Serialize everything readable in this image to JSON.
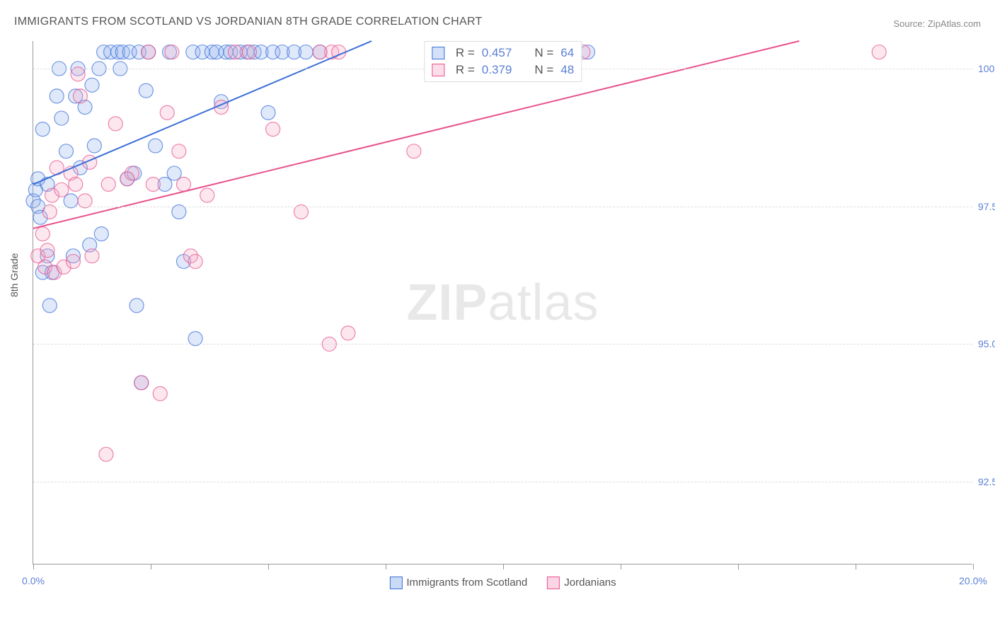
{
  "title": "IMMIGRANTS FROM SCOTLAND VS JORDANIAN 8TH GRADE CORRELATION CHART",
  "source": "Source: ZipAtlas.com",
  "ylabel": "8th Grade",
  "watermark_bold": "ZIP",
  "watermark_rest": "atlas",
  "chart": {
    "type": "scatter",
    "xlim": [
      0.0,
      20.0
    ],
    "ylim": [
      91.0,
      100.5
    ],
    "xticks": [
      0.0,
      2.5,
      5.0,
      7.5,
      10.0,
      12.5,
      15.0,
      17.5,
      20.0
    ],
    "xtick_labels": {
      "0": "0.0%",
      "20": "20.0%"
    },
    "yticks": [
      92.5,
      95.0,
      97.5,
      100.0
    ],
    "ytick_labels": [
      "92.5%",
      "95.0%",
      "97.5%",
      "100.0%"
    ],
    "grid_color": "#dddddd",
    "axis_color": "#999999",
    "background_color": "#ffffff",
    "label_color": "#5b7fd6",
    "text_color": "#555555",
    "marker_radius": 10,
    "marker_fill_opacity": 0.28,
    "marker_stroke_opacity": 0.7,
    "line_width": 2,
    "series": [
      {
        "name": "Immigrants from Scotland",
        "color_stroke": "#3b6fd8",
        "color_fill": "#8fb0ec",
        "R": "0.457",
        "N": "64",
        "trend": {
          "x1": 0.0,
          "y1": 97.9,
          "x2": 7.2,
          "y2": 100.5
        },
        "points": [
          [
            0.0,
            97.6
          ],
          [
            0.05,
            97.8
          ],
          [
            0.1,
            98.0
          ],
          [
            0.1,
            97.5
          ],
          [
            0.15,
            97.3
          ],
          [
            0.2,
            96.3
          ],
          [
            0.2,
            98.9
          ],
          [
            0.3,
            96.6
          ],
          [
            0.35,
            95.7
          ],
          [
            0.3,
            97.9
          ],
          [
            0.4,
            96.3
          ],
          [
            0.5,
            99.5
          ],
          [
            0.55,
            100.0
          ],
          [
            0.6,
            99.1
          ],
          [
            0.7,
            98.5
          ],
          [
            0.8,
            97.6
          ],
          [
            0.85,
            96.6
          ],
          [
            0.9,
            99.5
          ],
          [
            0.95,
            100.0
          ],
          [
            1.0,
            98.2
          ],
          [
            1.1,
            99.3
          ],
          [
            1.2,
            96.8
          ],
          [
            1.25,
            99.7
          ],
          [
            1.3,
            98.6
          ],
          [
            1.4,
            100.0
          ],
          [
            1.45,
            97.0
          ],
          [
            1.5,
            100.3
          ],
          [
            1.65,
            100.3
          ],
          [
            1.8,
            100.3
          ],
          [
            1.85,
            100.0
          ],
          [
            1.9,
            100.3
          ],
          [
            2.0,
            98.0
          ],
          [
            2.05,
            100.3
          ],
          [
            2.15,
            98.1
          ],
          [
            2.2,
            95.7
          ],
          [
            2.25,
            100.3
          ],
          [
            2.3,
            94.3
          ],
          [
            2.4,
            99.6
          ],
          [
            2.45,
            100.3
          ],
          [
            2.6,
            98.6
          ],
          [
            2.8,
            97.9
          ],
          [
            2.9,
            100.3
          ],
          [
            3.0,
            98.1
          ],
          [
            3.1,
            97.4
          ],
          [
            3.2,
            96.5
          ],
          [
            3.4,
            100.3
          ],
          [
            3.45,
            95.1
          ],
          [
            3.6,
            100.3
          ],
          [
            3.8,
            100.3
          ],
          [
            3.9,
            100.3
          ],
          [
            4.0,
            99.4
          ],
          [
            4.1,
            100.3
          ],
          [
            4.2,
            100.3
          ],
          [
            4.4,
            100.3
          ],
          [
            4.55,
            100.3
          ],
          [
            4.7,
            100.3
          ],
          [
            4.85,
            100.3
          ],
          [
            5.0,
            99.2
          ],
          [
            5.1,
            100.3
          ],
          [
            5.3,
            100.3
          ],
          [
            5.55,
            100.3
          ],
          [
            5.8,
            100.3
          ],
          [
            6.1,
            100.3
          ],
          [
            11.8,
            100.3
          ]
        ]
      },
      {
        "name": "Jordanians",
        "color_stroke": "#e8518c",
        "color_fill": "#f4a8c4",
        "R": "0.379",
        "N": "48",
        "trend": {
          "x1": 0.0,
          "y1": 97.1,
          "x2": 16.3,
          "y2": 100.5
        },
        "points": [
          [
            0.1,
            96.6
          ],
          [
            0.2,
            97.0
          ],
          [
            0.25,
            96.4
          ],
          [
            0.3,
            96.7
          ],
          [
            0.35,
            97.4
          ],
          [
            0.4,
            97.7
          ],
          [
            0.45,
            96.3
          ],
          [
            0.5,
            98.2
          ],
          [
            0.6,
            97.8
          ],
          [
            0.65,
            96.4
          ],
          [
            0.8,
            98.1
          ],
          [
            0.85,
            96.5
          ],
          [
            0.9,
            97.9
          ],
          [
            0.95,
            99.9
          ],
          [
            1.0,
            99.5
          ],
          [
            1.1,
            97.6
          ],
          [
            1.2,
            98.3
          ],
          [
            1.25,
            96.6
          ],
          [
            1.55,
            93.0
          ],
          [
            1.6,
            97.9
          ],
          [
            1.75,
            99.0
          ],
          [
            2.0,
            98.0
          ],
          [
            2.1,
            98.1
          ],
          [
            2.3,
            94.3
          ],
          [
            2.45,
            100.3
          ],
          [
            2.55,
            97.9
          ],
          [
            2.7,
            94.1
          ],
          [
            2.85,
            99.2
          ],
          [
            2.95,
            100.3
          ],
          [
            3.1,
            98.5
          ],
          [
            3.2,
            97.9
          ],
          [
            3.35,
            96.6
          ],
          [
            3.7,
            97.7
          ],
          [
            4.0,
            99.3
          ],
          [
            4.3,
            100.3
          ],
          [
            4.6,
            100.3
          ],
          [
            5.1,
            98.9
          ],
          [
            5.7,
            97.4
          ],
          [
            6.1,
            100.3
          ],
          [
            6.3,
            95.0
          ],
          [
            6.35,
            100.3
          ],
          [
            6.5,
            100.3
          ],
          [
            6.7,
            95.2
          ],
          [
            8.1,
            98.5
          ],
          [
            11.3,
            100.3
          ],
          [
            18.0,
            100.3
          ],
          [
            11.7,
            100.3
          ],
          [
            3.45,
            96.5
          ]
        ]
      }
    ]
  },
  "bottom_legend": {
    "items": [
      {
        "label": "Immigrants from Scotland",
        "fill": "#c9daf6",
        "stroke": "#3b6fd8"
      },
      {
        "label": "Jordanians",
        "fill": "#fbd5e4",
        "stroke": "#e8518c"
      }
    ]
  }
}
